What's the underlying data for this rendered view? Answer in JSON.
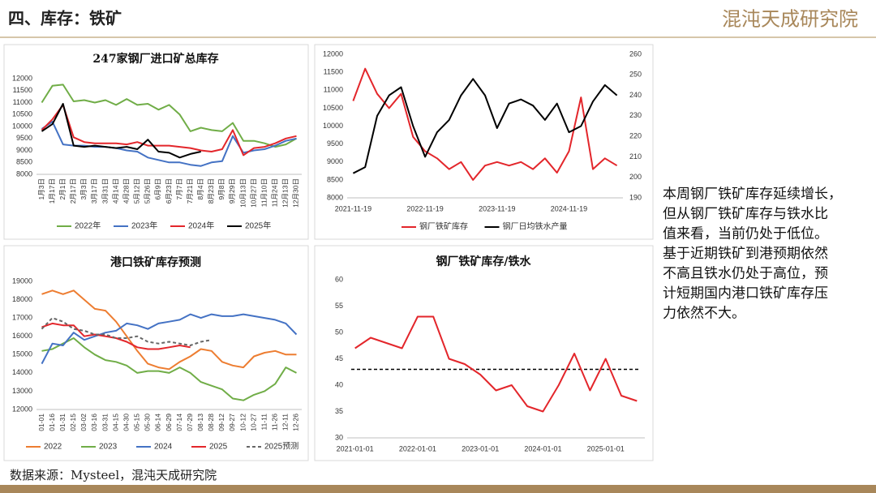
{
  "header": {
    "title": "四、库存：铁矿",
    "logo": "混沌天成研究院"
  },
  "source": "数据来源：Mysteel，混沌天成研究院",
  "commentary": [
    "本周钢厂铁矿库存延续增长，",
    "但从钢厂铁矿库存与铁水比",
    "值来看，当前仍处于低位。",
    "基于近期铁矿到港预期依然",
    "不高且铁水仍处于高位，预",
    "计短期国内港口铁矿库存压",
    "力依然不大。"
  ],
  "chart_data": [
    {
      "type": "line",
      "title": "247家钢厂进口矿总库存",
      "categories": [
        "1月3日",
        "1月17日",
        "2月1日",
        "2月17日",
        "3月3日",
        "3月17日",
        "3月31日",
        "4月14日",
        "4月28日",
        "5月12日",
        "5月26日",
        "6月9日",
        "6月23日",
        "7月7日",
        "7月21日",
        "8月4日",
        "8月23日",
        "9月8日",
        "9月29日",
        "10月13日",
        "10月27日",
        "11月10日",
        "11月24日",
        "12月13日",
        "12月30日"
      ],
      "series": [
        {
          "name": "2022年",
          "color": "#70ad47",
          "values": [
            11000,
            11700,
            11750,
            11050,
            11100,
            11000,
            11100,
            10900,
            11150,
            10900,
            10950,
            10700,
            10900,
            10500,
            9800,
            9950,
            9850,
            9800,
            10150,
            9400,
            9400,
            9300,
            9150,
            9250,
            9500
          ]
        },
        {
          "name": "2023年",
          "color": "#4472c4",
          "values": [
            9900,
            10200,
            9250,
            9200,
            9200,
            9150,
            9150,
            9100,
            9000,
            8950,
            8700,
            8600,
            8500,
            8500,
            8400,
            8350,
            8500,
            8550,
            9600,
            8900,
            9000,
            9050,
            9200,
            9400,
            9500
          ]
        },
        {
          "name": "2024年",
          "color": "#e3262b",
          "values": [
            9850,
            10300,
            10900,
            9550,
            9350,
            9300,
            9300,
            9300,
            9250,
            9350,
            9200,
            9200,
            9200,
            9150,
            9100,
            9000,
            8950,
            9050,
            9850,
            8800,
            9100,
            9150,
            9300,
            9500,
            9600
          ]
        },
        {
          "name": "2025年",
          "color": "#000000",
          "values": [
            9800,
            10100,
            10950,
            9200,
            9150,
            9200,
            9150,
            9100,
            9150,
            9050,
            9450,
            8950,
            8900,
            8700,
            8850,
            8950,
            null,
            null,
            null,
            null,
            null,
            null,
            null,
            null,
            null
          ]
        }
      ],
      "ylim": [
        8000,
        12000
      ],
      "yticks": [
        8000,
        8500,
        9000,
        9500,
        10000,
        10500,
        11000,
        11500,
        12000
      ],
      "grid": false,
      "legend": "bottom"
    },
    {
      "type": "line",
      "categories": [
        "2021-11-19",
        null,
        null,
        null,
        null,
        null,
        "2022-11-19",
        null,
        null,
        null,
        null,
        null,
        "2023-11-19",
        null,
        null,
        null,
        null,
        null,
        "2024-11-19",
        null,
        null,
        null,
        null
      ],
      "series": [
        {
          "name": "钢厂铁矿库存",
          "color": "#e3262b",
          "values": [
            10700,
            11600,
            10900,
            10500,
            10900,
            9700,
            9300,
            9100,
            8800,
            9000,
            8500,
            8900,
            9000,
            8900,
            9000,
            8800,
            9100,
            8700,
            9300,
            10800,
            8800,
            9100,
            8900
          ]
        },
        {
          "name": "钢厂日均铁水产量",
          "color": "#000000",
          "axis": "y2",
          "values": [
            202,
            205,
            230,
            240,
            244,
            225,
            210,
            222,
            228,
            240,
            248,
            240,
            224,
            236,
            238,
            235,
            228,
            236,
            222,
            225,
            237,
            245,
            240
          ]
        }
      ],
      "ylim": [
        8000,
        12000
      ],
      "yticks": [
        8000,
        8500,
        9000,
        9500,
        10000,
        10500,
        11000,
        11500,
        12000
      ],
      "y2lim": [
        190,
        260
      ],
      "y2ticks": [
        190,
        200,
        210,
        220,
        230,
        240,
        250,
        260
      ],
      "grid": false,
      "legend": "bottom"
    },
    {
      "type": "line",
      "title": "港口铁矿库存预测",
      "categories": [
        "01-01",
        "01-16",
        "01-31",
        "02-15",
        "03-02",
        "03-16",
        "03-31",
        "04-15",
        "04-30",
        "05-15",
        "05-30",
        "06-14",
        "06-29",
        "07-14",
        "07-29",
        "08-13",
        "08-28",
        "09-12",
        "09-27",
        "10-12",
        "10-27",
        "11-11",
        "11-26",
        "12-11",
        "12-26"
      ],
      "series": [
        {
          "name": "2022",
          "color": "#ed7d31",
          "values": [
            18300,
            18500,
            18300,
            18500,
            18000,
            17500,
            17400,
            16800,
            16000,
            15200,
            14500,
            14300,
            14200,
            14600,
            14900,
            15300,
            15200,
            14600,
            14400,
            14300,
            14900,
            15100,
            15200,
            15000,
            15000
          ]
        },
        {
          "name": "2023",
          "color": "#70ad47",
          "values": [
            15200,
            15300,
            15600,
            15900,
            15400,
            15000,
            14700,
            14600,
            14400,
            14000,
            14100,
            14100,
            14000,
            14300,
            14000,
            13500,
            13300,
            13100,
            12600,
            12500,
            12800,
            13000,
            13400,
            14300,
            14000
          ]
        },
        {
          "name": "2024",
          "color": "#4472c4",
          "values": [
            14500,
            15600,
            15500,
            16200,
            15800,
            16000,
            16200,
            16300,
            16700,
            16600,
            16400,
            16700,
            16800,
            16900,
            17200,
            17000,
            17200,
            17100,
            17100,
            17200,
            17100,
            17000,
            16900,
            16700,
            16100
          ]
        },
        {
          "name": "2025",
          "color": "#e3262b",
          "values": [
            16500,
            16700,
            16600,
            16600,
            16000,
            16100,
            16000,
            15900,
            15700,
            15400,
            15300,
            15300,
            15400,
            15500,
            15400,
            null,
            null,
            null,
            null,
            null,
            null,
            null,
            null,
            null,
            null
          ]
        },
        {
          "name": "2025预测",
          "color": "#666666",
          "dash": true,
          "values": [
            16400,
            17000,
            16800,
            16400,
            16300,
            16100,
            16100,
            15900,
            15900,
            16000,
            15700,
            15600,
            15700,
            15600,
            15500,
            15700,
            15800,
            null,
            null,
            null,
            null,
            null,
            null,
            null,
            null
          ]
        }
      ],
      "ylim": [
        12000,
        19000
      ],
      "yticks": [
        12000,
        13000,
        14000,
        15000,
        16000,
        17000,
        18000,
        19000
      ],
      "grid": false,
      "legend": "bottom"
    },
    {
      "type": "line",
      "title": "钢厂铁矿库存/铁水",
      "categories": [
        "2021-01-01",
        null,
        null,
        null,
        "2022-01-01",
        null,
        null,
        null,
        "2023-01-01",
        null,
        null,
        null,
        "2024-01-01",
        null,
        null,
        null,
        "2025-01-01",
        null,
        null
      ],
      "series": [
        {
          "name": null,
          "color": "#e3262b",
          "values": [
            47,
            49,
            48,
            47,
            53,
            53,
            45,
            44,
            42,
            39,
            40,
            36,
            35,
            40,
            46,
            39,
            45,
            38,
            37
          ]
        }
      ],
      "reference_line": 43,
      "ylim": [
        30,
        60
      ],
      "yticks": [
        30,
        35,
        40,
        45,
        50,
        55,
        60
      ],
      "grid": false
    }
  ]
}
